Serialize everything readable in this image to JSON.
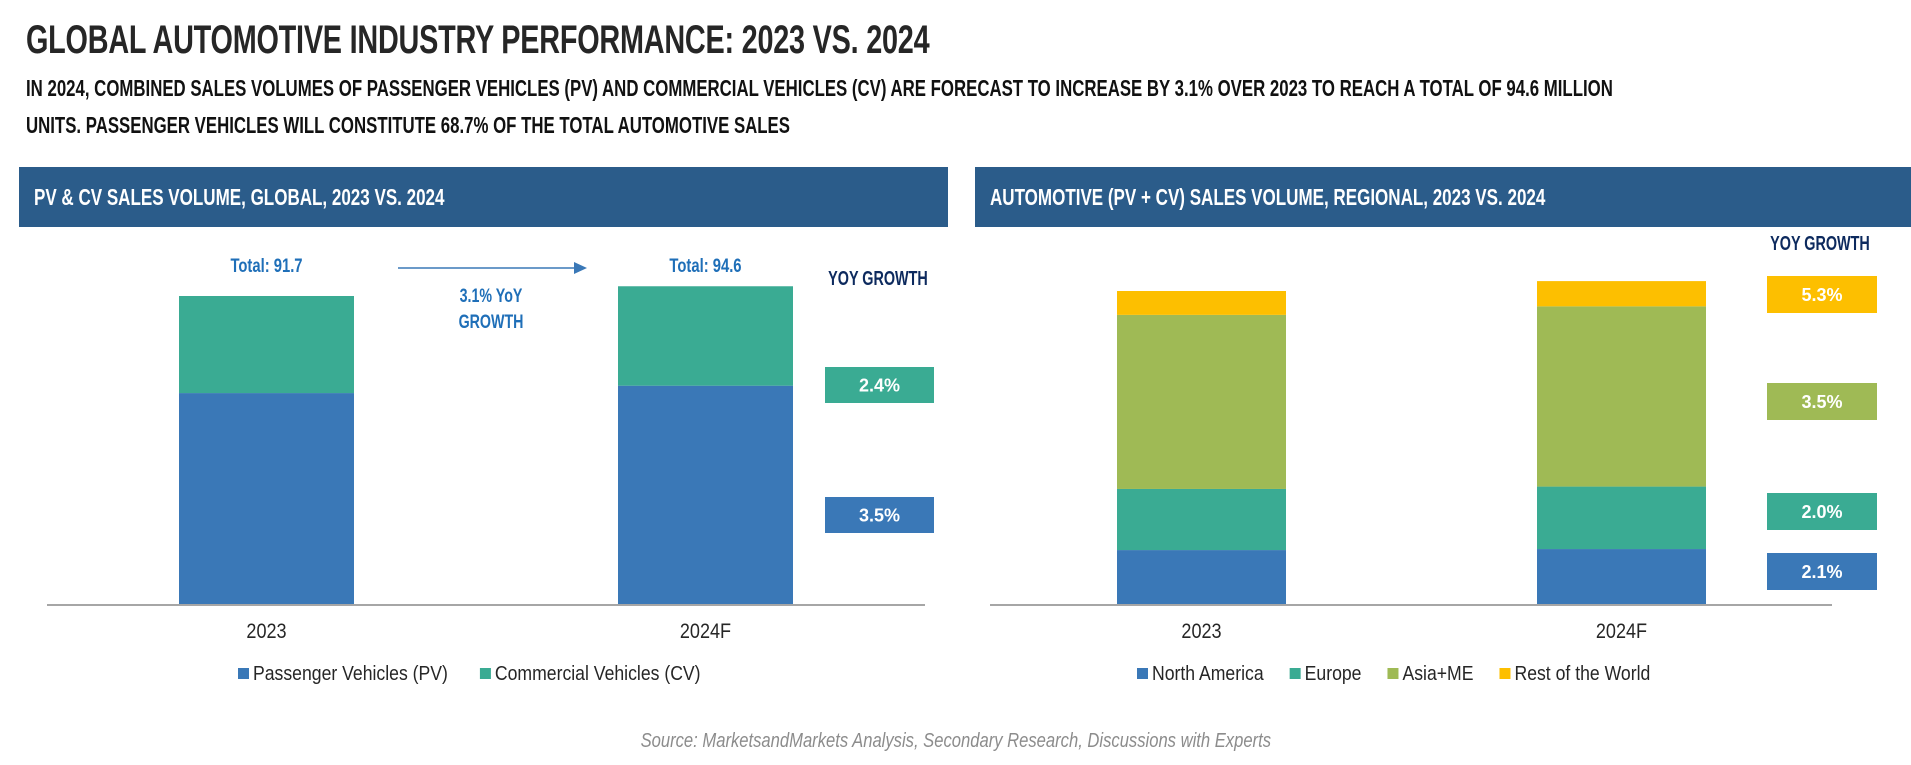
{
  "page": {
    "title": "GLOBAL AUTOMOTIVE INDUSTRY PERFORMANCE: 2023 VS. 2024",
    "subtitle_line1": "IN 2024, COMBINED SALES VOLUMES OF PASSENGER VEHICLES (PV) AND COMMERCIAL VEHICLES (CV) ARE FORECAST TO INCREASE BY 3.1% OVER 2023 TO REACH A TOTAL OF 94.6 MILLION",
    "subtitle_line2": "UNITS. PASSENGER VEHICLES WILL CONSTITUTE 68.7% OF THE TOTAL AUTOMOTIVE SALES",
    "source": "Source: MarketsandMarkets Analysis, Secondary Research, Discussions with Experts",
    "colors": {
      "header_bg": "#2b5c8a",
      "blue": "#3a78b7",
      "teal": "#3aab93",
      "green": "#9fba55",
      "yellow": "#fdbf00",
      "annotation_blue": "#1f6fb8",
      "yoy_label": "#0d2a5e",
      "axis": "#a6a6a6"
    }
  },
  "chart_data": [
    {
      "type": "bar",
      "stacked": true,
      "title": "PV & CV SALES VOLUME, GLOBAL, 2023 VS. 2024",
      "unit": "Million Units",
      "categories": [
        "2023",
        "2024F"
      ],
      "series": [
        {
          "name": "Passenger Vehicles (PV)",
          "color": "#3a78b7",
          "values": [
            62.8,
            65.0
          ],
          "yoy_growth": "3.5%"
        },
        {
          "name": "Commercial Vehicles (CV)",
          "color": "#3aab93",
          "values": [
            28.9,
            29.6
          ],
          "yoy_growth": "2.4%"
        }
      ],
      "totals": [
        "Total: 91.7",
        "Total: 94.6"
      ],
      "growth_annotation": [
        "3.1% YoY",
        "GROWTH"
      ],
      "yoy_title": "YOY GROWTH",
      "ylim": [
        0,
        100
      ],
      "grid": false,
      "legend": "bottom"
    },
    {
      "type": "bar",
      "stacked": true,
      "title": "AUTOMOTIVE (PV + CV) SALES VOLUME, REGIONAL, 2023 VS. 2024",
      "unit": "Million Units",
      "categories": [
        "2023",
        "2024F"
      ],
      "series": [
        {
          "name": "North America",
          "color": "#3a78b7",
          "values": [
            15.8,
            16.1
          ],
          "yoy_growth": "2.1%"
        },
        {
          "name": "Europe",
          "color": "#3aab93",
          "values": [
            17.9,
            18.3
          ],
          "yoy_growth": "2.0%"
        },
        {
          "name": "Asia+ME",
          "color": "#9fba55",
          "values": [
            51.0,
            52.8
          ],
          "yoy_growth": "3.5%"
        },
        {
          "name": "Rest of the World",
          "color": "#fdbf00",
          "values": [
            7.0,
            7.4
          ],
          "yoy_growth": "5.3%"
        }
      ],
      "yoy_title": "YOY GROWTH",
      "ylim": [
        0,
        100
      ],
      "grid": false,
      "legend": "bottom"
    }
  ]
}
